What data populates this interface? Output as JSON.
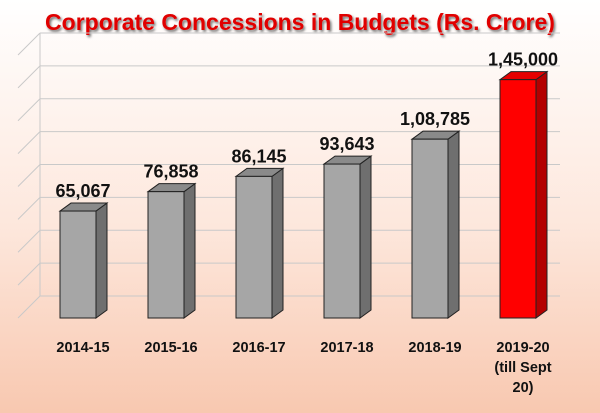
{
  "chart_data": {
    "type": "bar",
    "title": "Corporate Concessions in Budgets (Rs. Crore)",
    "categories": [
      "2014-15",
      "2015-16",
      "2016-17",
      "2017-18",
      "2018-19",
      "2019-20 (till Sept 20)"
    ],
    "category_lines": [
      [
        "2014-15"
      ],
      [
        "2015-16"
      ],
      [
        "2016-17"
      ],
      [
        "2017-18"
      ],
      [
        "2018-19"
      ],
      [
        "2019-20",
        "(till Sept",
        "20)"
      ]
    ],
    "values": [
      65067,
      76858,
      86145,
      93643,
      108785,
      145000
    ],
    "value_labels": [
      "65,067",
      "76,858",
      "86,145",
      "93,643",
      "1,08,785",
      "1,45,000"
    ],
    "ylim": [
      0,
      160000
    ],
    "grid": true,
    "bar_color": "#a6a6a6",
    "highlight_color": "#ff0000",
    "highlight_index": 5,
    "title_color": "#e00000"
  }
}
